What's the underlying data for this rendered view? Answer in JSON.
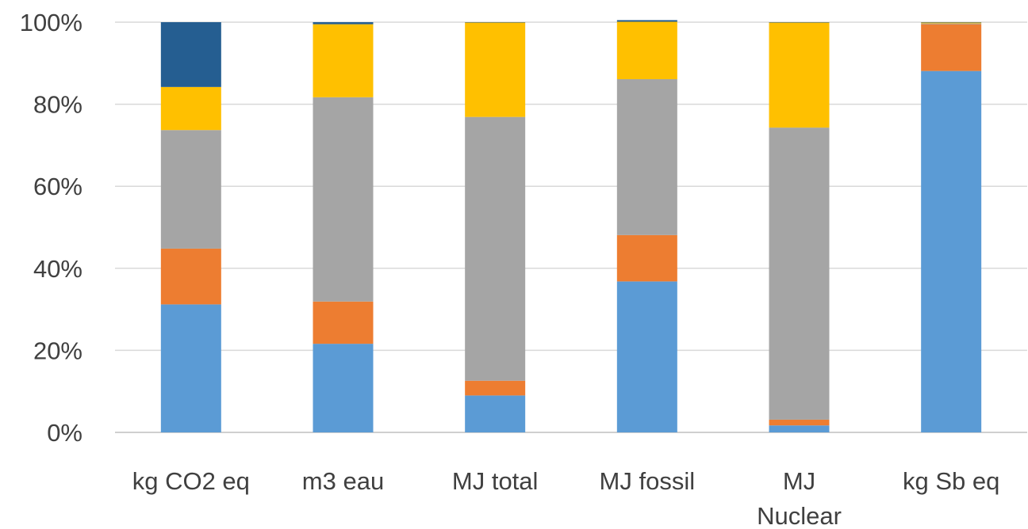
{
  "chart_data": {
    "type": "bar",
    "stacked": true,
    "percent_stacked": true,
    "categories": [
      "kg CO2 eq",
      "m3 eau",
      "MJ total",
      "MJ fossil",
      "MJ Nuclear",
      "kg Sb eq"
    ],
    "category_lines": [
      [
        "kg CO2 eq"
      ],
      [
        "m3 eau"
      ],
      [
        "MJ total"
      ],
      [
        "MJ fossil"
      ],
      [
        "MJ",
        "Nuclear"
      ],
      [
        "kg Sb eq"
      ]
    ],
    "series": [
      {
        "color": "#5b9bd5",
        "values": [
          31.2,
          21.6,
          9.0,
          36.8,
          1.7,
          88.1
        ]
      },
      {
        "color": "#ed7d31",
        "values": [
          13.6,
          10.3,
          3.6,
          11.3,
          1.4,
          11.4
        ]
      },
      {
        "color": "#a5a5a5",
        "values": [
          28.9,
          49.8,
          64.3,
          38.0,
          71.2,
          0.2
        ]
      },
      {
        "color": "#ffc000",
        "values": [
          10.5,
          17.8,
          23.0,
          14.0,
          25.6,
          0.2
        ]
      },
      {
        "color": "#255e91",
        "values": [
          15.8,
          0.5,
          0.1,
          0.4,
          0.1,
          0.1
        ]
      }
    ],
    "ylim": [
      0,
      100
    ],
    "yticks": [
      0,
      20,
      40,
      60,
      80,
      100
    ],
    "ytick_labels": [
      "0%",
      "20%",
      "40%",
      "60%",
      "80%",
      "100%"
    ],
    "grid": true,
    "legend": "none"
  }
}
